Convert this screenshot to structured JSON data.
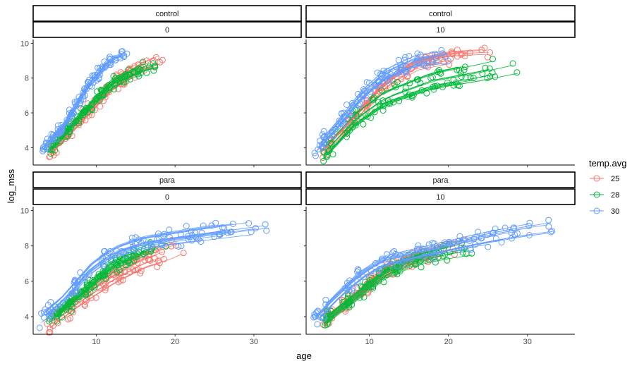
{
  "chart_data": {
    "type": "scatter",
    "title": "",
    "xlabel": "age",
    "ylabel": "log_mss",
    "xlim": [
      2,
      36
    ],
    "ylim": [
      3,
      10.3
    ],
    "x_ticks": [
      10,
      20,
      30
    ],
    "y_ticks": [
      4,
      6,
      8,
      10
    ],
    "grid": false,
    "legend": {
      "title": "temp.avg",
      "placement": "right",
      "entries": [
        {
          "label": "25",
          "color": "#F8766D"
        },
        {
          "label": "28",
          "color": "#00BA38"
        },
        {
          "label": "30",
          "color": "#619CFF"
        }
      ]
    },
    "panels": [
      {
        "strip_top": "control",
        "strip_bottom": "0",
        "series": [
          {
            "temp": "25",
            "color": "#F8766D",
            "trend": [
              [
                4,
                3.7
              ],
              [
                8,
                5.6
              ],
              [
                12,
                7.6
              ],
              [
                16,
                8.8
              ],
              [
                19,
                9.3
              ]
            ],
            "spread": 0.35
          },
          {
            "temp": "28",
            "color": "#00BA38",
            "trend": [
              [
                4,
                3.8
              ],
              [
                8,
                5.8
              ],
              [
                12,
                7.7
              ],
              [
                16,
                8.5
              ],
              [
                18,
                8.7
              ]
            ],
            "spread": 0.35
          },
          {
            "temp": "30",
            "color": "#619CFF",
            "trend": [
              [
                3,
                3.9
              ],
              [
                6,
                5.3
              ],
              [
                9,
                7.6
              ],
              [
                12,
                9.1
              ],
              [
                14,
                9.4
              ]
            ],
            "spread": 0.3
          }
        ]
      },
      {
        "strip_top": "control",
        "strip_bottom": "10",
        "series": [
          {
            "temp": "25",
            "color": "#F8766D",
            "trend": [
              [
                4,
                3.7
              ],
              [
                8,
                5.6
              ],
              [
                12,
                7.6
              ],
              [
                16,
                8.8
              ],
              [
                20,
                9.2
              ],
              [
                26,
                9.3
              ]
            ],
            "spread": 0.4
          },
          {
            "temp": "28",
            "color": "#00BA38",
            "trend": [
              [
                4,
                3.5
              ],
              [
                8,
                5.5
              ],
              [
                12,
                6.8
              ],
              [
                18,
                7.8
              ],
              [
                24,
                8.3
              ],
              [
                29,
                8.8
              ]
            ],
            "spread": 0.7
          },
          {
            "temp": "30",
            "color": "#619CFF",
            "trend": [
              [
                3,
                3.8
              ],
              [
                6,
                5.3
              ],
              [
                9,
                7.0
              ],
              [
                12,
                8.2
              ],
              [
                16,
                9.0
              ],
              [
                20,
                9.2
              ]
            ],
            "spread": 0.4
          }
        ]
      },
      {
        "strip_top": "para",
        "strip_bottom": "0",
        "series": [
          {
            "temp": "25",
            "color": "#F8766D",
            "trend": [
              [
                4,
                3.6
              ],
              [
                8,
                5.0
              ],
              [
                12,
                6.2
              ],
              [
                16,
                7.2
              ],
              [
                20,
                7.8
              ],
              [
                22,
                8.3
              ]
            ],
            "spread": 0.5
          },
          {
            "temp": "28",
            "color": "#00BA38",
            "trend": [
              [
                4,
                3.7
              ],
              [
                8,
                5.2
              ],
              [
                12,
                6.8
              ],
              [
                16,
                7.6
              ],
              [
                19,
                8.2
              ]
            ],
            "spread": 0.45
          },
          {
            "temp": "30",
            "color": "#619CFF",
            "trend": [
              [
                3,
                3.9
              ],
              [
                6,
                5.0
              ],
              [
                9,
                6.6
              ],
              [
                12,
                7.6
              ],
              [
                16,
                8.2
              ],
              [
                22,
                8.6
              ],
              [
                32,
                9.2
              ]
            ],
            "spread": 0.45
          }
        ]
      },
      {
        "strip_top": "para",
        "strip_bottom": "10",
        "series": [
          {
            "temp": "25",
            "color": "#F8766D",
            "trend": [
              [
                4,
                3.6
              ],
              [
                8,
                5.0
              ],
              [
                12,
                6.5
              ],
              [
                16,
                7.3
              ],
              [
                20,
                7.8
              ],
              [
                22,
                8.0
              ]
            ],
            "spread": 0.45
          },
          {
            "temp": "28",
            "color": "#00BA38",
            "trend": [
              [
                4,
                3.6
              ],
              [
                8,
                5.0
              ],
              [
                12,
                6.4
              ],
              [
                16,
                7.2
              ],
              [
                20,
                7.6
              ],
              [
                24,
                7.9
              ]
            ],
            "spread": 0.4
          },
          {
            "temp": "30",
            "color": "#619CFF",
            "trend": [
              [
                3,
                3.8
              ],
              [
                6,
                5.2
              ],
              [
                9,
                6.4
              ],
              [
                12,
                7.2
              ],
              [
                18,
                7.8
              ],
              [
                24,
                8.4
              ],
              [
                30,
                8.9
              ],
              [
                35,
                9.2
              ]
            ],
            "spread": 0.45
          }
        ]
      }
    ]
  }
}
